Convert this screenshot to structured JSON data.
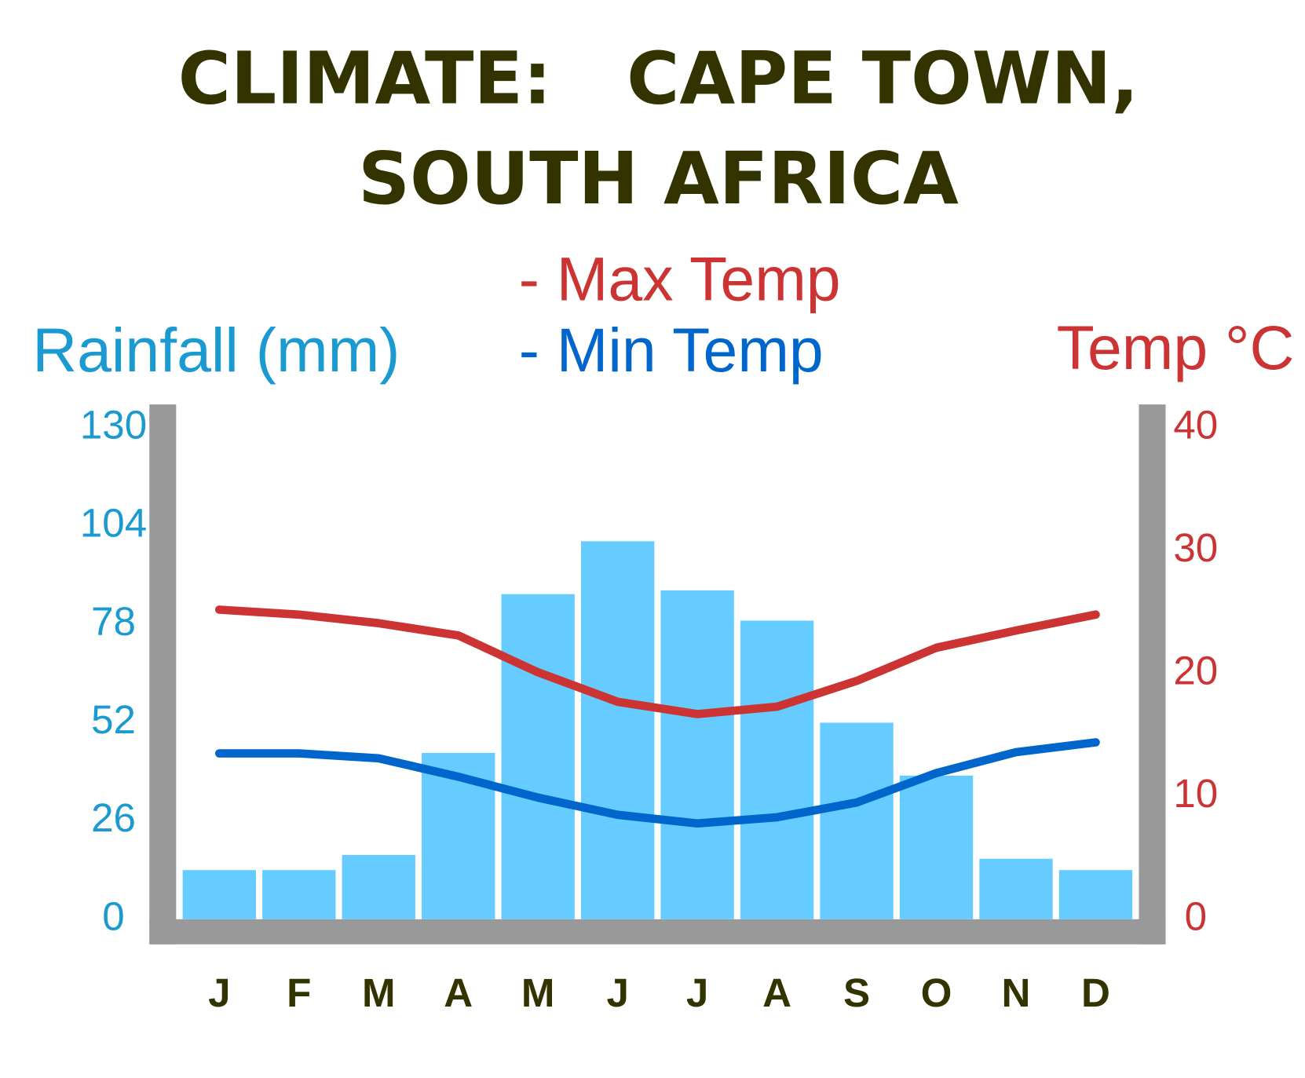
{
  "chart_data": {
    "type": "bar",
    "title": [
      "CLIMATE:   CAPE TOWN,",
      "SOUTH AFRICA"
    ],
    "y_label": "Rainfall (mm)",
    "y2_label": "Temp °C",
    "categories": [
      "J",
      "F",
      "M",
      "A",
      "M",
      "J",
      "J",
      "A",
      "S",
      "O",
      "N",
      "D"
    ],
    "series": [
      {
        "name": "Rainfall (mm)",
        "type": "bar",
        "axis": "y",
        "color": "#66ccff",
        "values": [
          13,
          13,
          17,
          44,
          86,
          100,
          87,
          79,
          52,
          38,
          16,
          13
        ]
      },
      {
        "name": "- Max Temp",
        "type": "line",
        "axis": "y2",
        "color": "#cc3333",
        "values": [
          25.2,
          24.8,
          24.1,
          23.1,
          20.1,
          17.7,
          16.7,
          17.3,
          19.4,
          22.1,
          23.5,
          24.8
        ]
      },
      {
        "name": "- Min Temp",
        "type": "line",
        "axis": "y2",
        "color": "#0066cc",
        "values": [
          13.5,
          13.5,
          13.1,
          11.6,
          9.9,
          8.5,
          7.8,
          8.3,
          9.5,
          11.9,
          13.6,
          14.4
        ]
      }
    ],
    "ylim": [
      0,
      130
    ],
    "yticks": [
      0,
      26,
      52,
      78,
      104,
      130
    ],
    "y2lim": [
      0,
      40
    ],
    "y2ticks": [
      0,
      10,
      20,
      30,
      40
    ],
    "grid": false
  }
}
